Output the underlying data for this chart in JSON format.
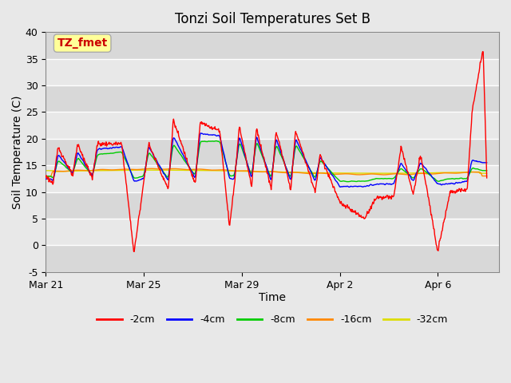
{
  "title": "Tonzi Soil Temperatures Set B",
  "xlabel": "Time",
  "ylabel": "Soil Temperature (C)",
  "ylim": [
    -5,
    40
  ],
  "yticks": [
    -5,
    0,
    5,
    10,
    15,
    20,
    25,
    30,
    35,
    40
  ],
  "bg_color": "#e8e8e8",
  "plot_bg_color": "#e8e8e8",
  "grid_color": "#ffffff",
  "annotation_text": "TZ_fmet",
  "annotation_color": "#cc0000",
  "annotation_bg": "#ffff99",
  "annotation_border": "#aaaaaa",
  "series_colors": {
    "-2cm": "#ff0000",
    "-4cm": "#0000ff",
    "-8cm": "#00cc00",
    "-16cm": "#ff8800",
    "-32cm": "#dddd00"
  },
  "legend_labels": [
    "-2cm",
    "-4cm",
    "-8cm",
    "-16cm",
    "-32cm"
  ],
  "xtick_days": [
    0,
    4,
    8,
    12,
    16
  ],
  "xtick_labels": [
    "Mar 21",
    "Mar 25",
    "Mar 29",
    "Apr 2",
    "Apr 6"
  ],
  "xlim": [
    0,
    18.5
  ]
}
